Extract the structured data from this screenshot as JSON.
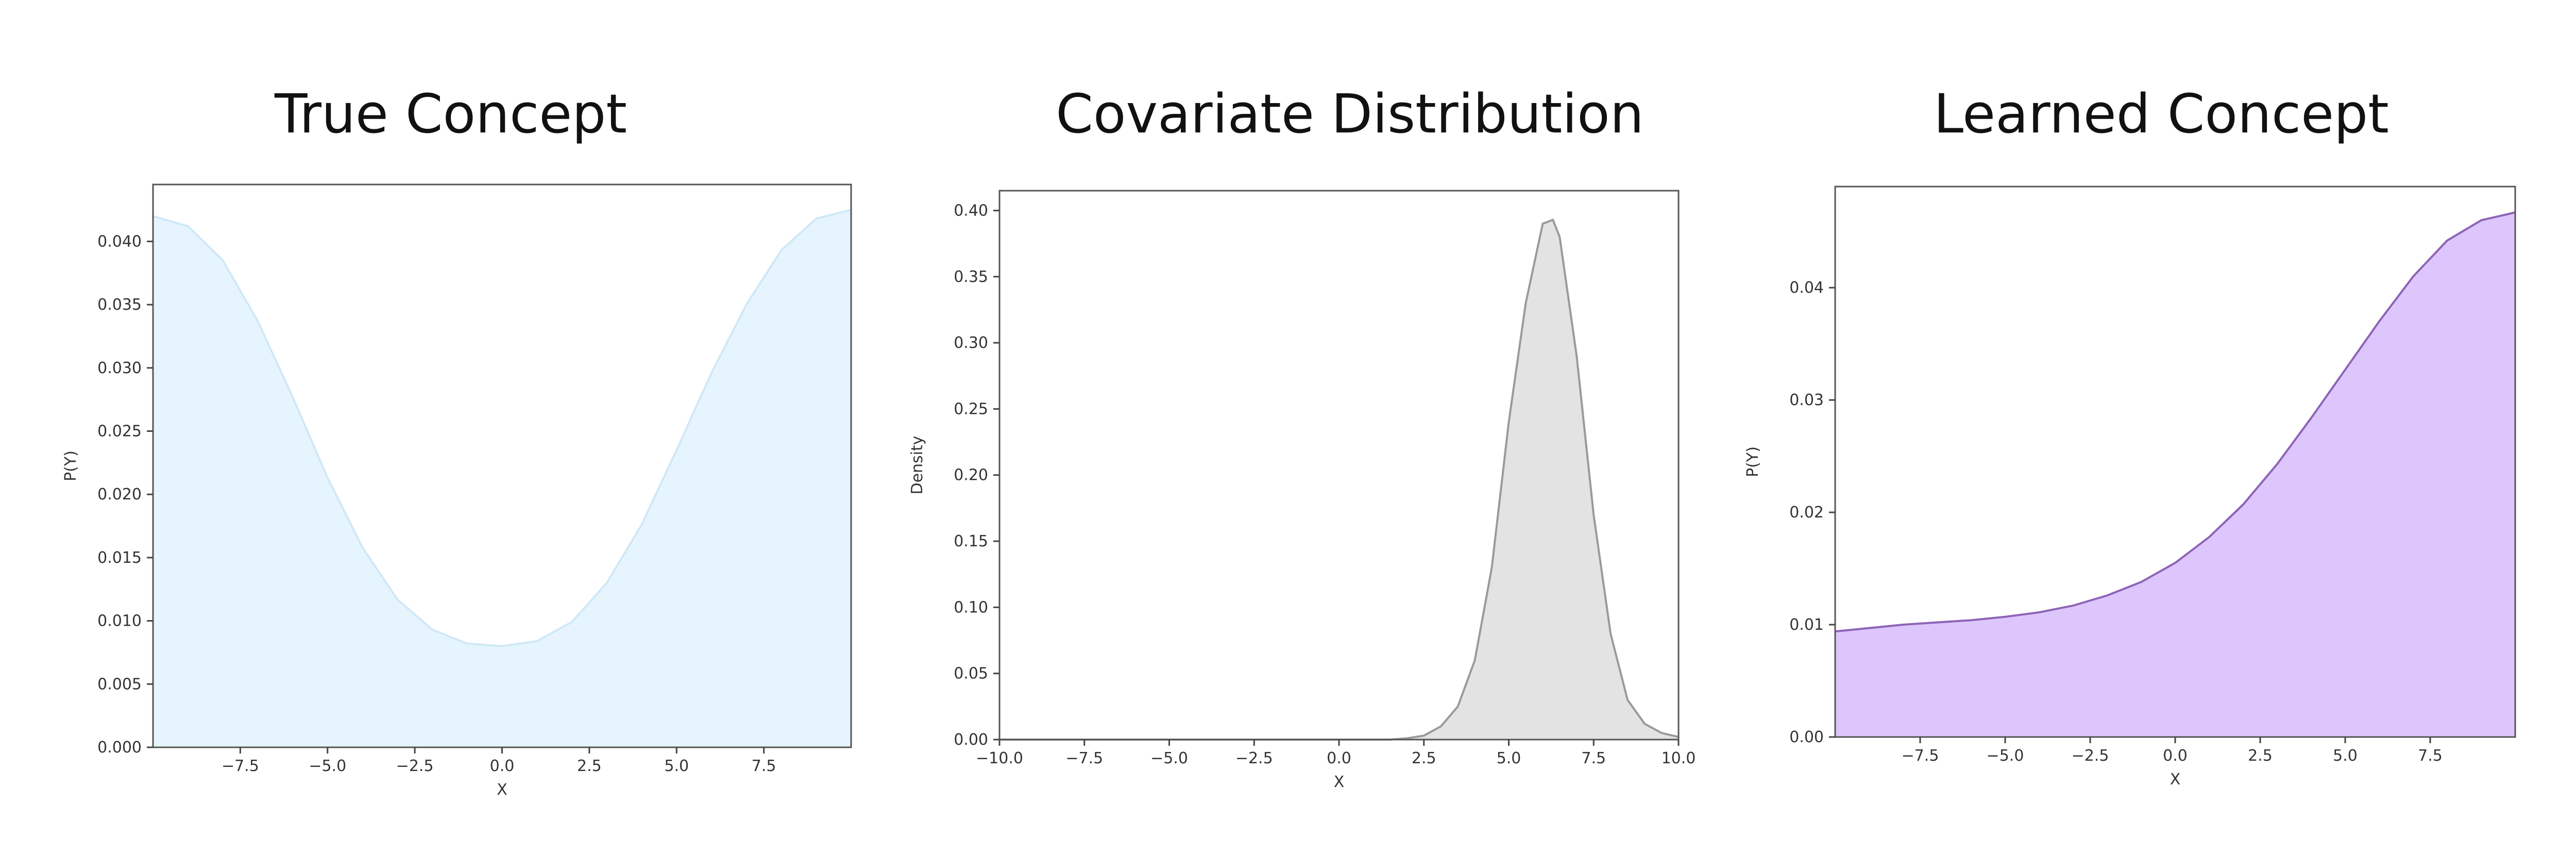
{
  "panels": [
    {
      "title": "True Concept",
      "chart_data": {
        "type": "area",
        "title": "",
        "xlabel": "X",
        "ylabel": "P(Y)",
        "xlim": [
          -10,
          10
        ],
        "ylim": [
          0,
          0.0445
        ],
        "xticks": [
          -7.5,
          -5.0,
          -2.5,
          0.0,
          2.5,
          5.0,
          7.5
        ],
        "xtick_labels": [
          "−7.5",
          "−5.0",
          "−2.5",
          "0.0",
          "2.5",
          "5.0",
          "7.5"
        ],
        "yticks": [
          0,
          0.005,
          0.01,
          0.015,
          0.02,
          0.025,
          0.03,
          0.035,
          0.04
        ],
        "ytick_labels": [
          "0.000",
          "0.005",
          "0.010",
          "0.015",
          "0.020",
          "0.025",
          "0.030",
          "0.035",
          "0.040"
        ],
        "grid": false,
        "x": [
          -10,
          -9,
          -8,
          -7,
          -6,
          -5,
          -4,
          -3,
          -2,
          -1,
          0,
          1,
          2,
          3,
          4,
          5,
          6,
          7,
          8,
          9,
          10
        ],
        "y": [
          0.042,
          0.0412,
          0.0385,
          0.0337,
          0.0277,
          0.0213,
          0.0158,
          0.0117,
          0.0093,
          0.0082,
          0.008,
          0.0084,
          0.0099,
          0.013,
          0.0176,
          0.0235,
          0.0296,
          0.035,
          0.0393,
          0.0418,
          0.0425
        ],
        "fill_color": "#e6f5fd",
        "line_color": "#cfe8f7"
      }
    },
    {
      "title": "Covariate Distribution",
      "chart_data": {
        "type": "area",
        "title": "",
        "xlabel": "X",
        "ylabel": "Density",
        "xlim": [
          -10,
          10
        ],
        "ylim": [
          0,
          0.415
        ],
        "xticks": [
          -10,
          -7.5,
          -5,
          -2.5,
          0,
          2.5,
          5,
          7.5,
          10
        ],
        "xtick_labels": [
          "−10.0",
          "−7.5",
          "−5.0",
          "−2.5",
          "0.0",
          "2.5",
          "5.0",
          "7.5",
          "10.0"
        ],
        "yticks": [
          0,
          0.05,
          0.1,
          0.15,
          0.2,
          0.25,
          0.3,
          0.35,
          0.4
        ],
        "ytick_labels": [
          "0.00",
          "0.05",
          "0.10",
          "0.15",
          "0.20",
          "0.25",
          "0.30",
          "0.35",
          "0.40"
        ],
        "grid": false,
        "x": [
          -10,
          1.5,
          2.0,
          2.5,
          3.0,
          3.5,
          4.0,
          4.5,
          5.0,
          5.5,
          6.0,
          6.3,
          6.5,
          7.0,
          7.5,
          8.0,
          8.5,
          9.0,
          9.5,
          10.0
        ],
        "y": [
          0,
          0,
          0.001,
          0.003,
          0.01,
          0.025,
          0.06,
          0.13,
          0.24,
          0.33,
          0.39,
          0.393,
          0.38,
          0.29,
          0.17,
          0.08,
          0.03,
          0.012,
          0.005,
          0.002
        ],
        "fill_color": "#e3e3e3",
        "line_color": "#9a9a9a"
      }
    },
    {
      "title": "Learned Concept",
      "chart_data": {
        "type": "area",
        "title": "",
        "xlabel": "X",
        "ylabel": "P(Y)",
        "xlim": [
          -10,
          10
        ],
        "ylim": [
          0,
          0.049
        ],
        "xticks": [
          -7.5,
          -5.0,
          -2.5,
          0.0,
          2.5,
          5.0,
          7.5
        ],
        "xtick_labels": [
          "−7.5",
          "−5.0",
          "−2.5",
          "0.0",
          "2.5",
          "5.0",
          "7.5"
        ],
        "yticks": [
          0,
          0.01,
          0.02,
          0.03,
          0.04
        ],
        "ytick_labels": [
          "0.00",
          "0.01",
          "0.02",
          "0.03",
          "0.04"
        ],
        "grid": false,
        "x": [
          -10,
          -9,
          -8,
          -7,
          -6,
          -5,
          -4,
          -3,
          -2,
          -1,
          0,
          1,
          2,
          3,
          4,
          5,
          6,
          7,
          8,
          9,
          10
        ],
        "y": [
          0.0094,
          0.0097,
          0.01,
          0.0102,
          0.0104,
          0.0107,
          0.0111,
          0.0117,
          0.0126,
          0.0138,
          0.0155,
          0.0178,
          0.0207,
          0.0243,
          0.0284,
          0.0327,
          0.037,
          0.041,
          0.0442,
          0.046,
          0.0467
        ],
        "fill_color": "#dcc6fb",
        "line_color": "#8e63b8"
      }
    }
  ]
}
